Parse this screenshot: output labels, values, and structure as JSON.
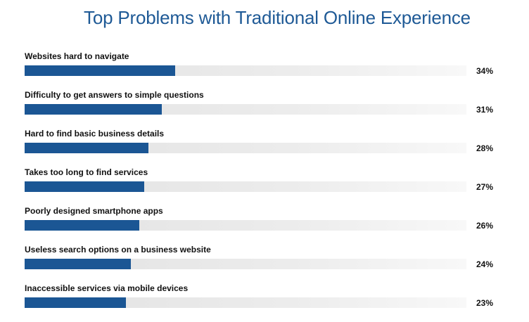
{
  "chart_data": {
    "type": "bar",
    "orientation": "horizontal",
    "title": "Top Problems with Traditional Online Experience",
    "categories": [
      "Websites hard to navigate",
      "Difficulty to get answers to simple questions",
      "Hard to find basic business details",
      "Takes too long to find services",
      "Poorly designed smartphone apps",
      "Useless search options on a business website",
      "Inaccessible services via mobile devices"
    ],
    "values": [
      34,
      31,
      28,
      27,
      26,
      24,
      23
    ],
    "value_labels": [
      "34%",
      "31%",
      "28%",
      "27%",
      "26%",
      "24%",
      "23%"
    ],
    "xlim": [
      0,
      100
    ],
    "unit": "%",
    "grid": false,
    "legend": "none",
    "colors": {
      "bar": "#1b5694",
      "track": "#e6e6e6",
      "title": "#1f5a96"
    }
  }
}
